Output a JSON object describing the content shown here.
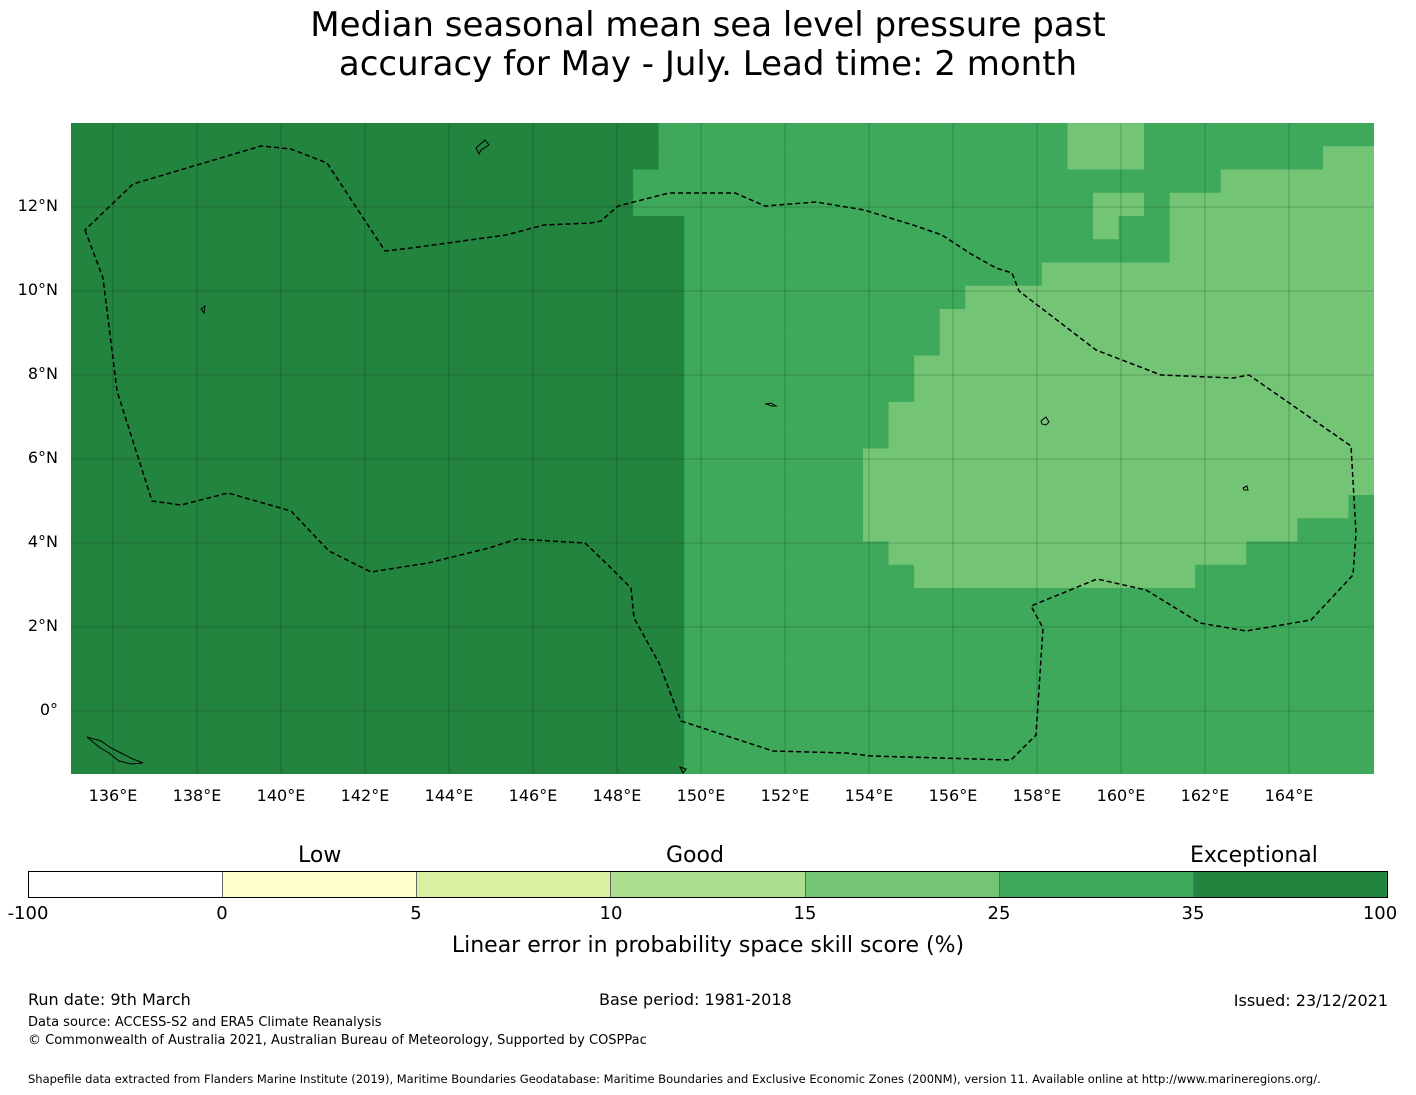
{
  "title": {
    "line1": "Median seasonal mean sea level pressure past",
    "line2": "accuracy for May - July. Lead time: 2 month"
  },
  "map": {
    "lat_labels": [
      "12°N",
      "10°N",
      "8°N",
      "6°N",
      "4°N",
      "2°N",
      "0°"
    ],
    "lon_labels": [
      "136°E",
      "138°E",
      "140°E",
      "142°E",
      "144°E",
      "146°E",
      "148°E",
      "150°E",
      "152°E",
      "154°E",
      "156°E",
      "158°E",
      "160°E",
      "162°E",
      "164°E"
    ],
    "legend_bins": {
      "7": "#23843f",
      "6": "#3ea95a",
      "5": "#74c476",
      "4": "#addf91"
    },
    "grid_rows": [
      "777777777777777777777776666666666666666555666666666",
      "777777777777777777777776666666666666666555666666655",
      "777777777777777777777766666666666666666666666555555",
      "777777777777777777777766666666666666666655655555555",
      "777777777777777777777777666666666666666656655555555",
      "777777777777777777777777666666666666666666655555555",
      "777777777777777777777777666666666666665555555555555",
      "777777777777777777777777666666666665555555555555555",
      "777777777777777777777777666666666655555555555555555",
      "777777777777777777777777666666666655555555555555555",
      "777777777777777777777777666666666555555555555555555",
      "777777777777777777777777666666666555555555555555555",
      "777777777777777777777777666666665555555555555555555",
      "777777777777777777777777666666665555555555555555555",
      "777777777777777777777777666666655555555555555555555",
      "777777777777777777777777666666655555555555555555555",
      "777777777777777777777777666666655555555555555555556",
      "777777777777777777777777666666655555555555555555666",
      "777777777777777777777777666666665555555555555566666",
      "777777777777777777777777666666666555555555556666666",
      "777777777777777777777777666666666666666666666666666",
      "777777777777777777777777666666666666666666666666666",
      "777777777777777777777777666666666666666666666666666",
      "777777777777777777777777666666666666666666666666666",
      "777777777777777777777777666666666666666666666666666",
      "777777777777777777777777666666666666666666666666666",
      "777777777777777777777777666666666666666666666666666",
      "777777777777777777777777666666666666666666666666666"
    ]
  },
  "colorbar": {
    "categories": [
      "Low",
      "Good",
      "Exceptional"
    ],
    "colors": [
      "#ffffff",
      "#ffffcc",
      "#d9f0a3",
      "#addd8e",
      "#74c476",
      "#3ea95a",
      "#23843f"
    ],
    "ticks": [
      "-100",
      "0",
      "5",
      "10",
      "15",
      "25",
      "35",
      "100"
    ],
    "title": "Linear error in probability space skill score (%)"
  },
  "footer": {
    "run_date": "Run date: 9th March",
    "base_period": "Base period: 1981-2018",
    "issued": "Issued: 23/12/2021",
    "data_source": "Data source: ACCESS-S2 and ERA5 Climate Reanalysis",
    "copyright": "© Commonwealth of Australia 2021, Australian Bureau of Meteorology, Supported by COSPPac",
    "shapefile": "Shapefile data extracted from Flanders Marine Institute (2019), Maritime Boundaries Geodatabase: Maritime Boundaries and Exclusive Economic Zones (200NM), version 11. Available online at http://www.marineregions.org/."
  }
}
